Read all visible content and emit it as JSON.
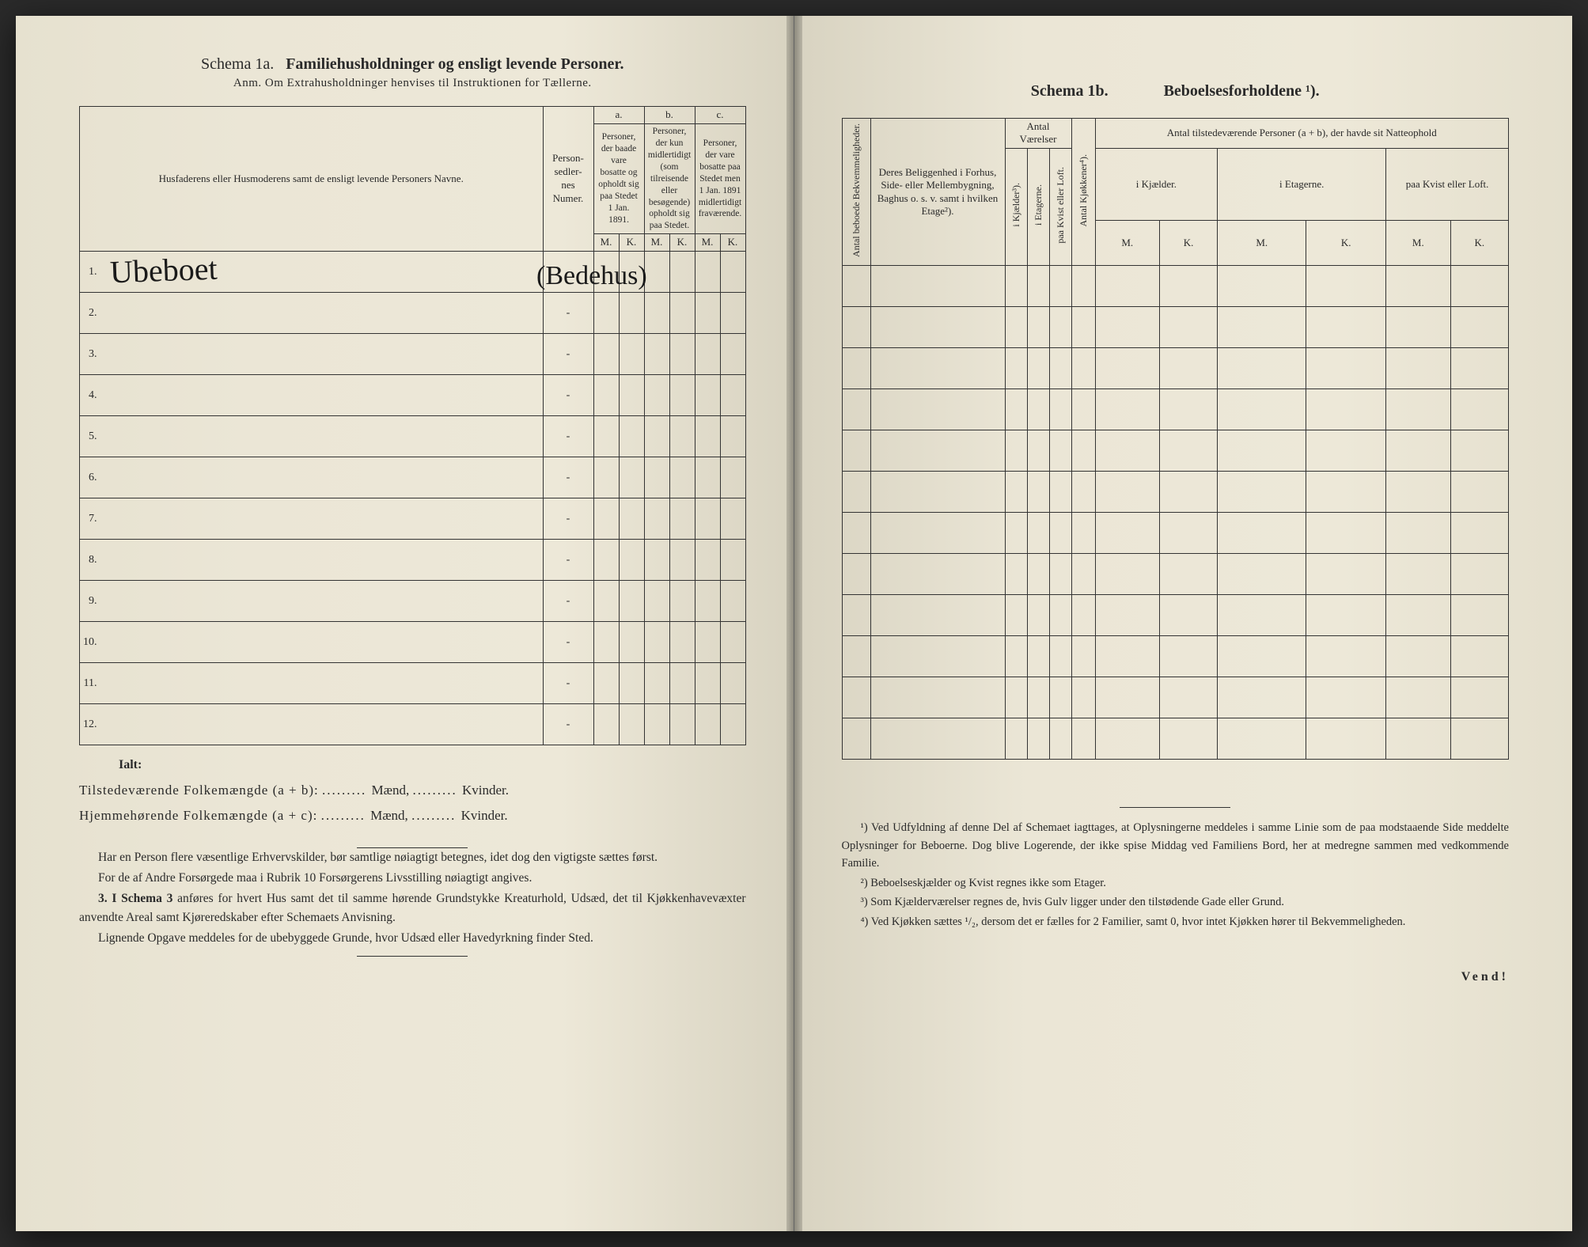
{
  "colors": {
    "paper": "#ebe6d6",
    "ink": "#2a2a2a",
    "rule": "#333333",
    "background": "#2a2a2a"
  },
  "typography": {
    "body_family": "Times New Roman",
    "script_family": "Brush Script MT",
    "title_size_pt": 20,
    "body_size_pt": 15.5,
    "table_size_pt": 13
  },
  "left": {
    "schema_label": "Schema 1a.",
    "title": "Familiehusholdninger og ensligt levende Personer.",
    "subtitle": "Anm. Om Extrahusholdninger henvises til Instruktionen for Tællerne.",
    "columns": {
      "names": "Husfaderens eller Husmoderens samt de ensligt levende Personers Navne.",
      "personsedler": "Person-\nsedler-\nnes\nNumer.",
      "a_label": "a.",
      "a_text": "Personer, der baade vare bosatte og opholdt sig paa Stedet 1 Jan. 1891.",
      "b_label": "b.",
      "b_text": "Personer, der kun midlertidigt (som tilreisende eller besøgende) opholdt sig paa Stedet.",
      "c_label": "c.",
      "c_text": "Personer, der vare bosatte paa Stedet men 1 Jan. 1891 midlertidigt fraværende.",
      "M": "M.",
      "K": "K."
    },
    "row_count": 12,
    "handwritten_name": "Ubeboet",
    "handwritten_paren": "(Bedehus)",
    "ialt": "Ialt:",
    "totals": {
      "line1_label": "Tilstedeværende Folkemængde (a + b):",
      "line2_label": "Hjemmehørende Folkemængde (a + c):",
      "maend": "Mænd,",
      "kvinder": "Kvinder."
    },
    "para1": "Har en Person flere væsentlige Erhvervskilder, bør samtlige nøiagtigt betegnes, idet dog den vigtigste sættes først.",
    "para2": "For de af Andre Forsørgede maa i Rubrik 10 Forsørgerens Livsstilling nøiagtigt angives.",
    "para3_lead": "3. I Schema 3",
    "para3": " anføres for hvert Hus samt det til samme hørende Grundstykke Kreaturhold, Udsæd, det til Kjøkkenhavevæxter anvendte Areal samt Kjøreredskaber efter Schemaets Anvisning.",
    "para4": "Lignende Opgave meddeles for de ubebyggede Grunde, hvor Udsæd eller Havedyrkning finder Sted."
  },
  "right": {
    "schema_label": "Schema 1b.",
    "title": "Beboelsesforholdene ¹).",
    "columns": {
      "bekv": "Antal beboede Bekvemmeligheder.",
      "beliggenhed": "Deres Beliggenhed i Forhus, Side- eller Mellembygning, Baghus o. s. v. samt i hvilken Etage²).",
      "antal_vaerelser": "Antal Værelser",
      "i_kjaelder": "i Kjælder³).",
      "i_etagerne": "i Etagerne.",
      "paa_kvist": "paa Kvist eller Loft.",
      "antal_kjokkener": "Antal Kjøkkener⁴).",
      "antal_personer": "Antal tilstedeværende Personer (a + b), der havde sit Natteophold",
      "p_kjaelder": "i Kjælder.",
      "p_etagerne": "i Etagerne.",
      "p_kvist": "paa Kvist eller Loft.",
      "M": "M.",
      "K": "K."
    },
    "row_count": 12,
    "footnote1": "¹) Ved Udfyldning af denne Del af Schemaet iagttages, at Oplysningerne meddeles i samme Linie som de paa modstaaende Side meddelte Oplysninger for Beboerne. Dog blive Logerende, der ikke spise Middag ved Familiens Bord, her at medregne sammen med vedkommende Familie.",
    "footnote2": "²) Beboelseskjælder og Kvist regnes ikke som Etager.",
    "footnote3": "³) Som Kjælderværelser regnes de, hvis Gulv ligger under den tilstødende Gade eller Grund.",
    "footnote4": "⁴) Ved Kjøkken sættes ¹/₂, dersom det er fælles for 2 Familier, samt 0, hvor intet Kjøkken hører til Bekvemmeligheden.",
    "vend": "Vend!"
  }
}
